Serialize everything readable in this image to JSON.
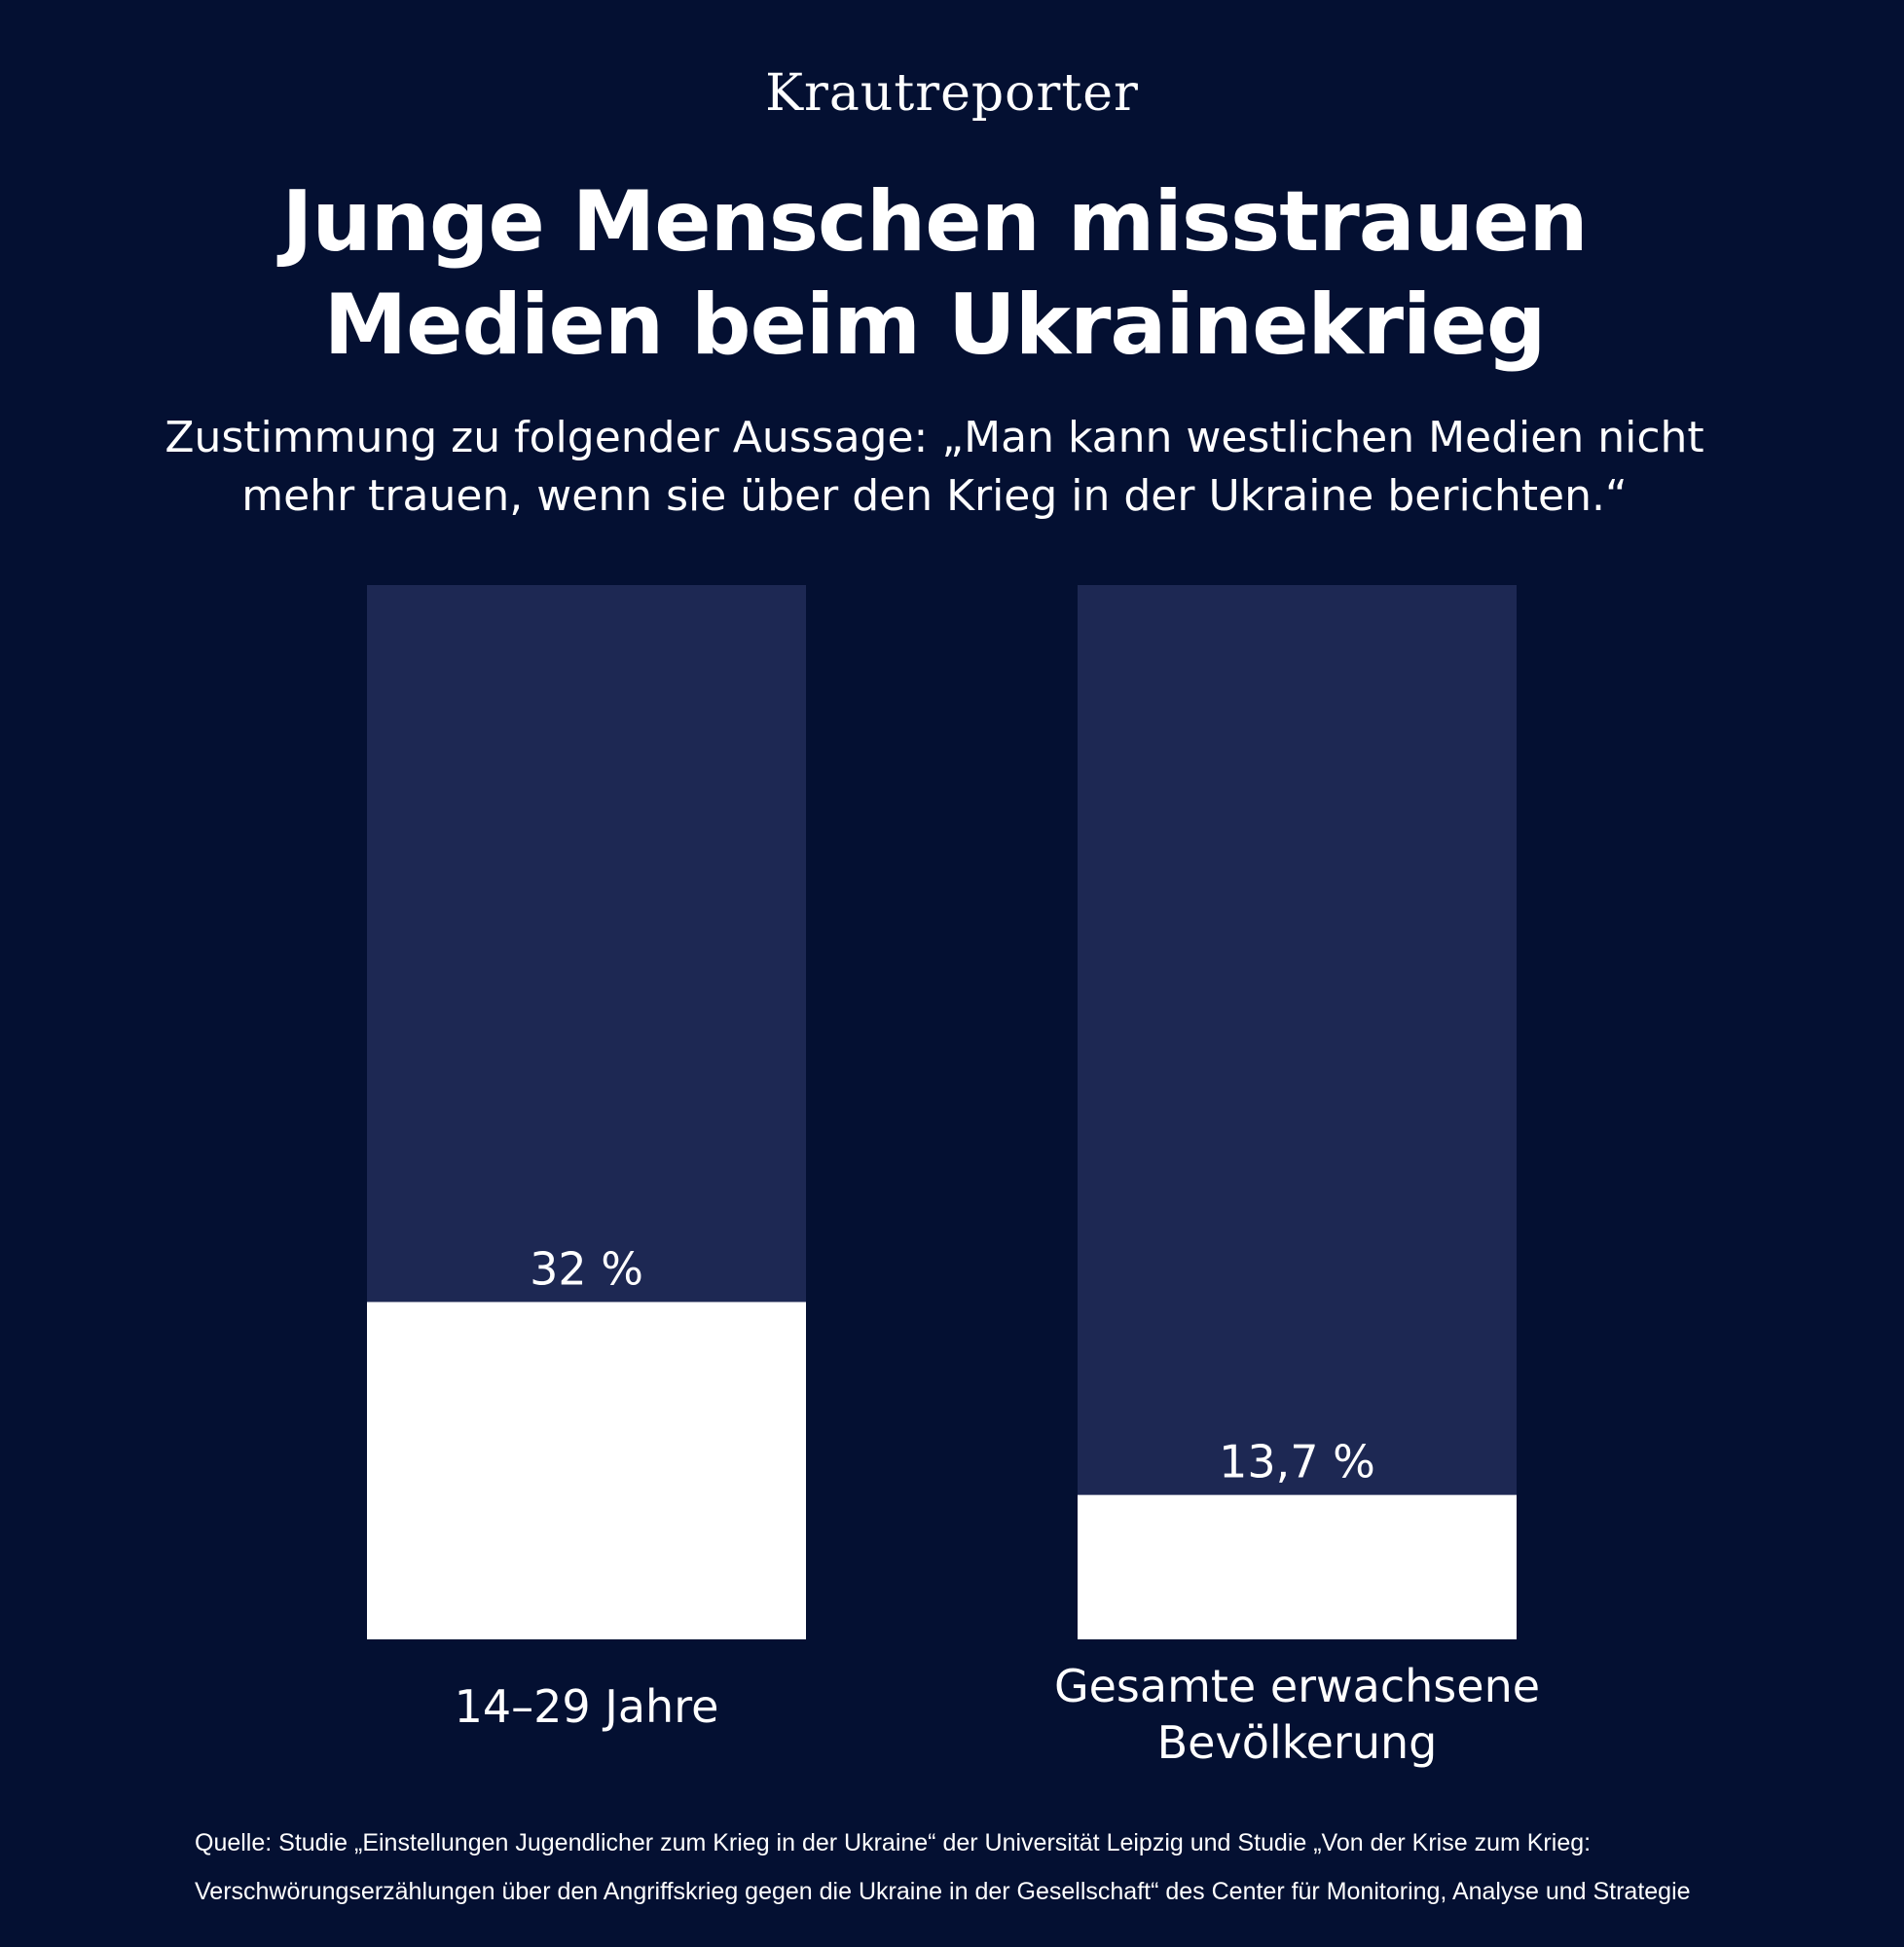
{
  "brand": "Krautreporter",
  "title": "Junge Menschen misstrauen Medien beim Ukrainekrieg",
  "subtitle": "Zustimmung zu folgender Aussage: „Man kann westlichen Medien nicht mehr trauen, wenn sie über den Krieg in der Ukraine berichten.“",
  "source": "Quelle: Studie „Einstellungen Jugendlicher zum Krieg in der Ukraine“ der Universität Leipzig und Studie „Von der Krise zum Krieg: Verschwörungserzählungen über den Angriffskrieg gegen die Ukraine in der Gesellschaft“ des Center für Monitoring, Analyse und Strategie",
  "colors": {
    "background": "#041032",
    "bar_track": "#1d2853",
    "bar_fill": "#ffffff",
    "text": "#ffffff"
  },
  "chart_data": {
    "type": "bar",
    "categories": [
      "14–29 Jahre",
      "Gesamte erwachsene Bevölkerung"
    ],
    "values": [
      32,
      13.7
    ],
    "value_labels": [
      "32 %",
      "13,7 %"
    ],
    "ylim": [
      0,
      100
    ],
    "unit": "%",
    "grid": false
  }
}
